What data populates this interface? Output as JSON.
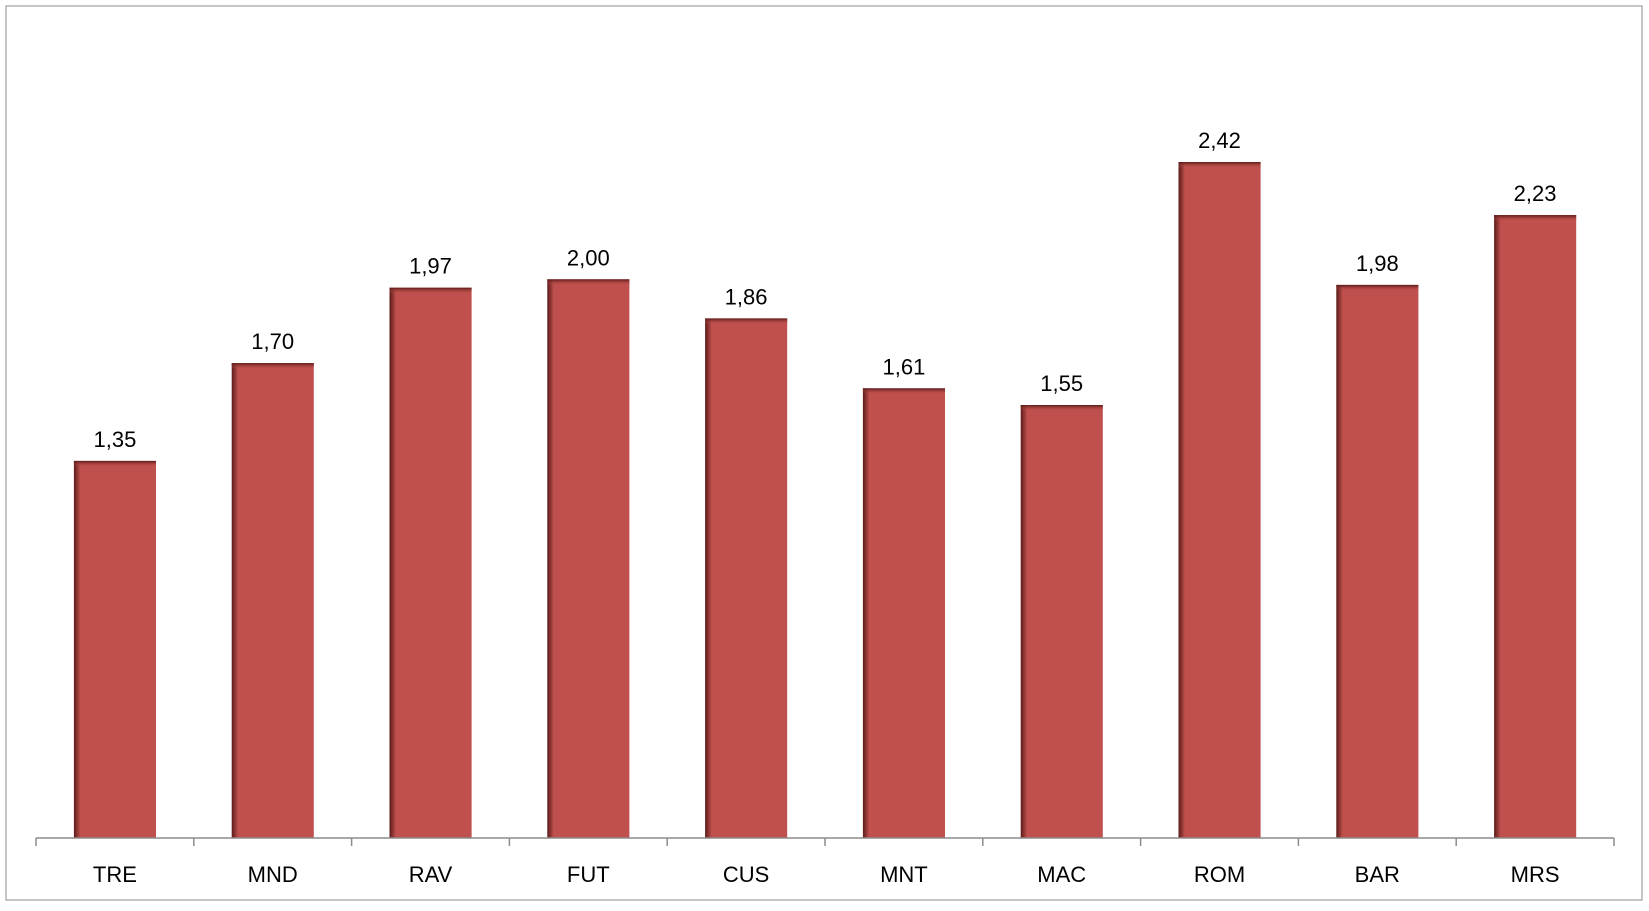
{
  "chart_data": {
    "type": "bar",
    "title": "",
    "xlabel": "",
    "ylabel": "",
    "categories": [
      "TRE",
      "MND",
      "RAV",
      "FUT",
      "CUS",
      "MNT",
      "MAC",
      "ROM",
      "BAR",
      "MRS"
    ],
    "values": [
      1.35,
      1.7,
      1.97,
      2.0,
      1.86,
      1.61,
      1.55,
      2.42,
      1.98,
      2.23
    ],
    "data_labels": [
      "1,35",
      "1,70",
      "1,97",
      "2,00",
      "1,86",
      "1,61",
      "1,55",
      "2,42",
      "1,98",
      "2,23"
    ],
    "ylim": [
      0,
      3.0
    ],
    "y_axis_visible": false,
    "grid": false,
    "legend": "none",
    "bar_color": "#c0504d",
    "bar_edge_color": "#6e2322"
  }
}
